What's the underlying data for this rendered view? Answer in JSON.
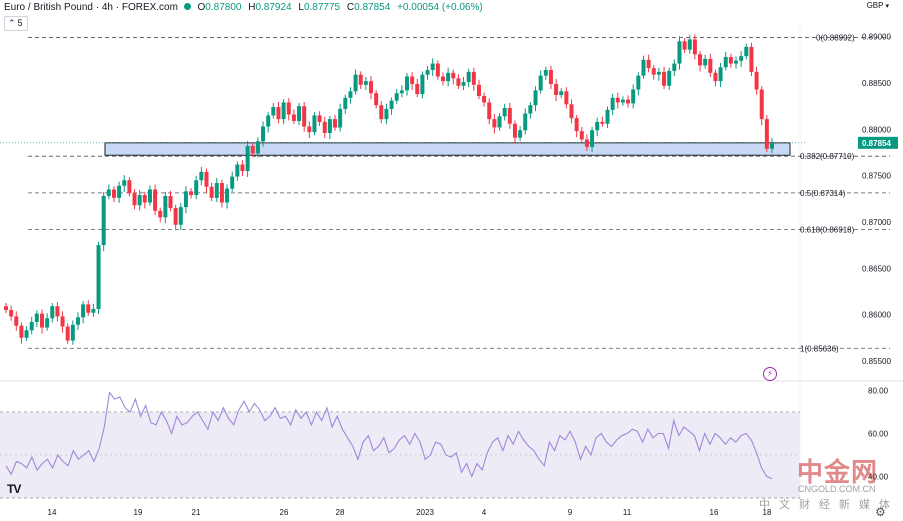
{
  "header": {
    "instrument": "Euro / British Pound · 4h · FOREX.com",
    "ohlc": [
      {
        "label": "O",
        "value": "0.87800"
      },
      {
        "label": "H",
        "value": "0.87924"
      },
      {
        "label": "L",
        "value": "0.87775"
      },
      {
        "label": "C",
        "value": "0.87854"
      }
    ],
    "change": "+0.00054 (+0.06%)",
    "collapse_count": "5",
    "currency": "GBP"
  },
  "colors": {
    "up": "#089981",
    "down": "#F23645",
    "zone_fill": "#C9D8F5",
    "zone_stroke": "#1E1E1E",
    "rsi_line": "#9B8AD8",
    "rsi_band": "#EEEBF7",
    "price_tag": "#089981",
    "grid_dash": "#555555"
  },
  "chart_data": [
    {
      "type": "candlestick",
      "series_ohlc_description": "approximate 4h closes read from chart",
      "x_ticks": [
        "14",
        "19",
        "21",
        "26",
        "28",
        "2023",
        "4",
        "9",
        "11",
        "16",
        "18"
      ],
      "y_ticks": [
        "0.89000",
        "0.88500",
        "0.88000",
        "0.87500",
        "0.87000",
        "0.86500",
        "0.86000",
        "0.85500"
      ],
      "ylim": [
        0.8538,
        0.8918
      ],
      "last_price": "0.87854",
      "fib_levels": [
        {
          "label": "0(0.88992)",
          "value": 0.88992
        },
        {
          "label": "0.382(0.87710)",
          "value": 0.8771
        },
        {
          "label": "0.5(0.87314)",
          "value": 0.87314
        },
        {
          "label": "0.618(0.86918)",
          "value": 0.86918
        },
        {
          "label": "1(0.85636)",
          "value": 0.85636
        }
      ],
      "zone": {
        "from_x": 105,
        "to_x": 790,
        "top": 0.87854,
        "bottom": 0.8772
      },
      "closes": [
        0.8605,
        0.8598,
        0.8588,
        0.8575,
        0.8583,
        0.8592,
        0.8601,
        0.8586,
        0.8596,
        0.8609,
        0.8598,
        0.8587,
        0.8572,
        0.8589,
        0.8597,
        0.8611,
        0.8602,
        0.8606,
        0.8675,
        0.8728,
        0.8735,
        0.8726,
        0.8739,
        0.8745,
        0.8731,
        0.8718,
        0.8729,
        0.8721,
        0.8735,
        0.8712,
        0.8705,
        0.8728,
        0.8715,
        0.8697,
        0.8716,
        0.8733,
        0.8729,
        0.8745,
        0.8754,
        0.8738,
        0.8726,
        0.8742,
        0.8721,
        0.8736,
        0.8749,
        0.8762,
        0.8755,
        0.8782,
        0.8774,
        0.8787,
        0.8803,
        0.8815,
        0.8824,
        0.8811,
        0.8829,
        0.8816,
        0.8809,
        0.8825,
        0.8803,
        0.8797,
        0.8815,
        0.8808,
        0.8796,
        0.8811,
        0.8802,
        0.8822,
        0.8834,
        0.8841,
        0.8859,
        0.8848,
        0.8852,
        0.8839,
        0.8826,
        0.8811,
        0.8822,
        0.8831,
        0.8839,
        0.8842,
        0.8857,
        0.8849,
        0.8838,
        0.8859,
        0.8864,
        0.8871,
        0.8857,
        0.8852,
        0.8861,
        0.8855,
        0.8847,
        0.8851,
        0.8862,
        0.8848,
        0.8836,
        0.8829,
        0.8811,
        0.8802,
        0.8814,
        0.8823,
        0.8806,
        0.8791,
        0.8799,
        0.8817,
        0.8826,
        0.8842,
        0.8858,
        0.8864,
        0.8849,
        0.8837,
        0.8841,
        0.8827,
        0.8812,
        0.8798,
        0.8789,
        0.8781,
        0.8799,
        0.8808,
        0.8806,
        0.8821,
        0.8834,
        0.8829,
        0.8832,
        0.8828,
        0.8843,
        0.8858,
        0.8875,
        0.8866,
        0.8859,
        0.8862,
        0.8847,
        0.8863,
        0.8871,
        0.8895,
        0.8886,
        0.8897,
        0.8881,
        0.8869,
        0.8876,
        0.8861,
        0.8852,
        0.8867,
        0.8878,
        0.8871,
        0.8874,
        0.8879,
        0.8889,
        0.8862,
        0.8843,
        0.8811,
        0.8779,
        0.8785
      ]
    },
    {
      "type": "line",
      "name": "RSI",
      "y_ticks": [
        "80.00",
        "60.00",
        "40.00"
      ],
      "ylim": [
        30,
        83
      ],
      "band": [
        30,
        70
      ],
      "values": [
        45,
        41,
        47,
        46,
        44,
        49,
        43,
        46,
        48,
        44,
        50,
        47,
        45,
        52,
        48,
        50,
        52,
        47,
        53,
        63,
        79,
        76,
        77,
        72,
        70,
        76,
        68,
        73,
        65,
        64,
        70,
        66,
        60,
        68,
        64,
        65,
        68,
        70,
        66,
        62,
        70,
        66,
        72,
        67,
        64,
        71,
        75,
        70,
        74,
        71,
        66,
        68,
        72,
        67,
        68,
        64,
        71,
        67,
        70,
        64,
        70,
        66,
        72,
        63,
        68,
        62,
        58,
        54,
        48,
        56,
        59,
        52,
        54,
        58,
        51,
        53,
        57,
        59,
        55,
        60,
        56,
        48,
        50,
        56,
        55,
        50,
        49,
        51,
        42,
        46,
        40,
        46,
        43,
        51,
        56,
        58,
        52,
        59,
        55,
        61,
        57,
        54,
        52,
        48,
        45,
        56,
        52,
        59,
        57,
        61,
        56,
        48,
        54,
        50,
        58,
        60,
        56,
        54,
        57,
        59,
        60,
        62,
        61,
        56,
        62,
        58,
        60,
        60,
        53,
        66,
        59,
        63,
        61,
        59,
        52,
        60,
        55,
        60,
        58,
        55,
        58,
        56,
        59,
        60,
        57,
        51,
        44,
        40,
        39
      ]
    }
  ]
}
